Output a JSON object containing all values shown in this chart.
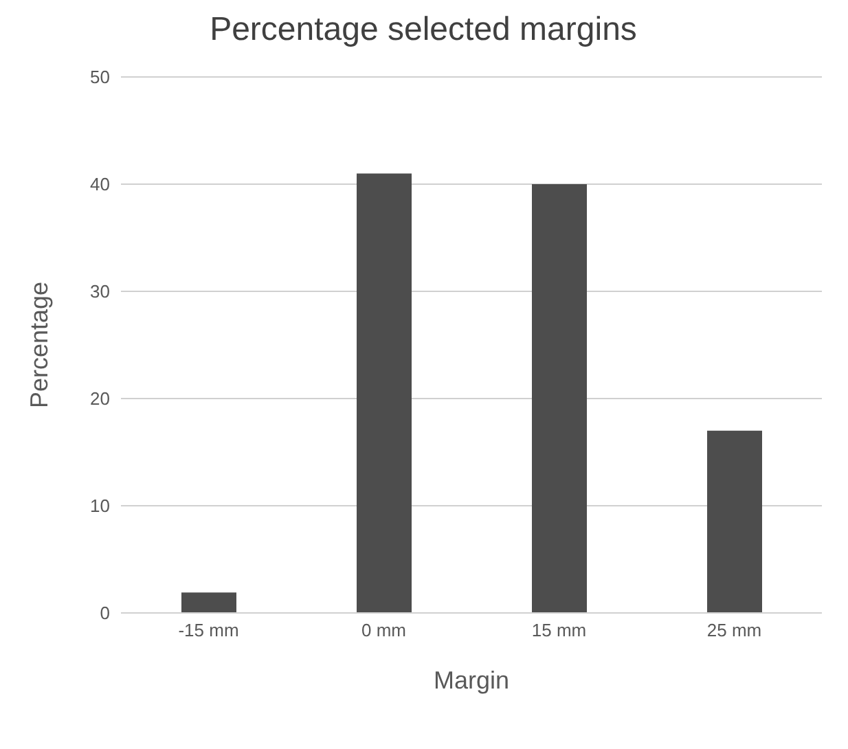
{
  "chart_data": {
    "type": "bar",
    "title": "Percentage selected margins",
    "xlabel": "Margin",
    "ylabel": "Percentage",
    "categories": [
      "-15 mm",
      "0 mm",
      "15 mm",
      "25 mm"
    ],
    "values": [
      1.9,
      41,
      40,
      17
    ],
    "color": "#4d4d4d",
    "ylim": [
      0,
      50
    ],
    "yticks": [
      0,
      10,
      20,
      30,
      40,
      50
    ],
    "grid": "y"
  }
}
